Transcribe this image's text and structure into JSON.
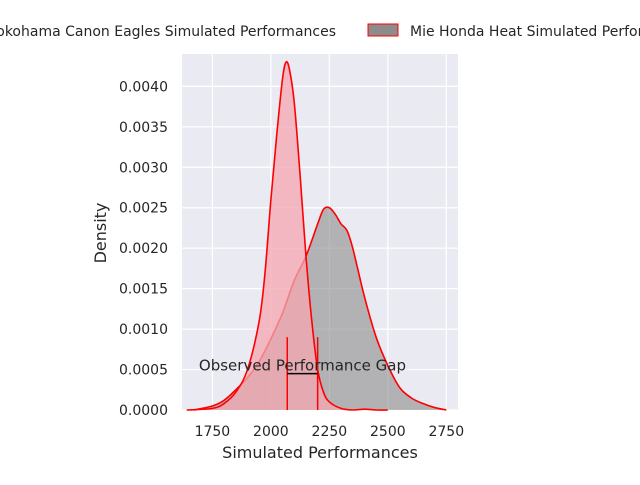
{
  "chart_data": {
    "type": "area",
    "title": "",
    "xlabel": "Simulated Performances",
    "ylabel": "Density",
    "xlim": [
      1620,
      2800
    ],
    "ylim": [
      0,
      0.0044
    ],
    "x_ticks": [
      1750,
      2000,
      2250,
      2500,
      2750
    ],
    "y_ticks": [
      0.0,
      0.0005,
      0.001,
      0.0015,
      0.002,
      0.0025,
      0.003,
      0.0035,
      0.004
    ],
    "x_tick_labels": [
      "1750",
      "2000",
      "2250",
      "2500",
      "2750"
    ],
    "y_tick_labels": [
      "0.0000",
      "0.0005",
      "0.0010",
      "0.0015",
      "0.0020",
      "0.0025",
      "0.0030",
      "0.0035",
      "0.0040"
    ],
    "grid": true,
    "legend_position": "top",
    "series": [
      {
        "name": "Yokohama Canon Eagles Simulated Performances",
        "fill": "#f4a6b0",
        "edge": "#ff0000",
        "x": [
          1640,
          1750,
          1800,
          1850,
          1900,
          1950,
          1975,
          2000,
          2025,
          2050,
          2065,
          2080,
          2100,
          2125,
          2150,
          2175,
          2200,
          2225,
          2250,
          2300,
          2350,
          2400,
          2450,
          2500
        ],
        "y": [
          0.0,
          2e-05,
          8e-05,
          0.00022,
          0.0005,
          0.0011,
          0.0017,
          0.0026,
          0.0034,
          0.0041,
          0.0043,
          0.0042,
          0.0038,
          0.0029,
          0.0019,
          0.0011,
          0.0005,
          0.00022,
          0.0001,
          2e-05,
          0.0,
          1e-05,
          0.0,
          0.0
        ]
      },
      {
        "name": "Mie Honda Heat Simulated Performances",
        "fill": "#8c8c8c",
        "edge": "#ff0000",
        "x": [
          1670,
          1750,
          1800,
          1850,
          1900,
          1950,
          2000,
          2050,
          2100,
          2150,
          2200,
          2225,
          2250,
          2275,
          2300,
          2325,
          2350,
          2400,
          2450,
          2500,
          2550,
          2600,
          2650,
          2700,
          2750
        ],
        "y": [
          0.0,
          5e-05,
          0.00012,
          0.00025,
          0.0004,
          0.0006,
          0.00088,
          0.0012,
          0.0016,
          0.0019,
          0.0023,
          0.00248,
          0.0025,
          0.00242,
          0.0023,
          0.00222,
          0.002,
          0.0014,
          0.0009,
          0.00055,
          0.00028,
          0.00015,
          8e-05,
          3e-05,
          0.0
        ]
      }
    ],
    "annotation": {
      "text": "Observed Performance Gap",
      "x1": 2070,
      "x2": 2200,
      "y_bar": 0.00045,
      "line_top": 0.0009,
      "text_x": 2135,
      "text_y": 0.00045
    }
  }
}
